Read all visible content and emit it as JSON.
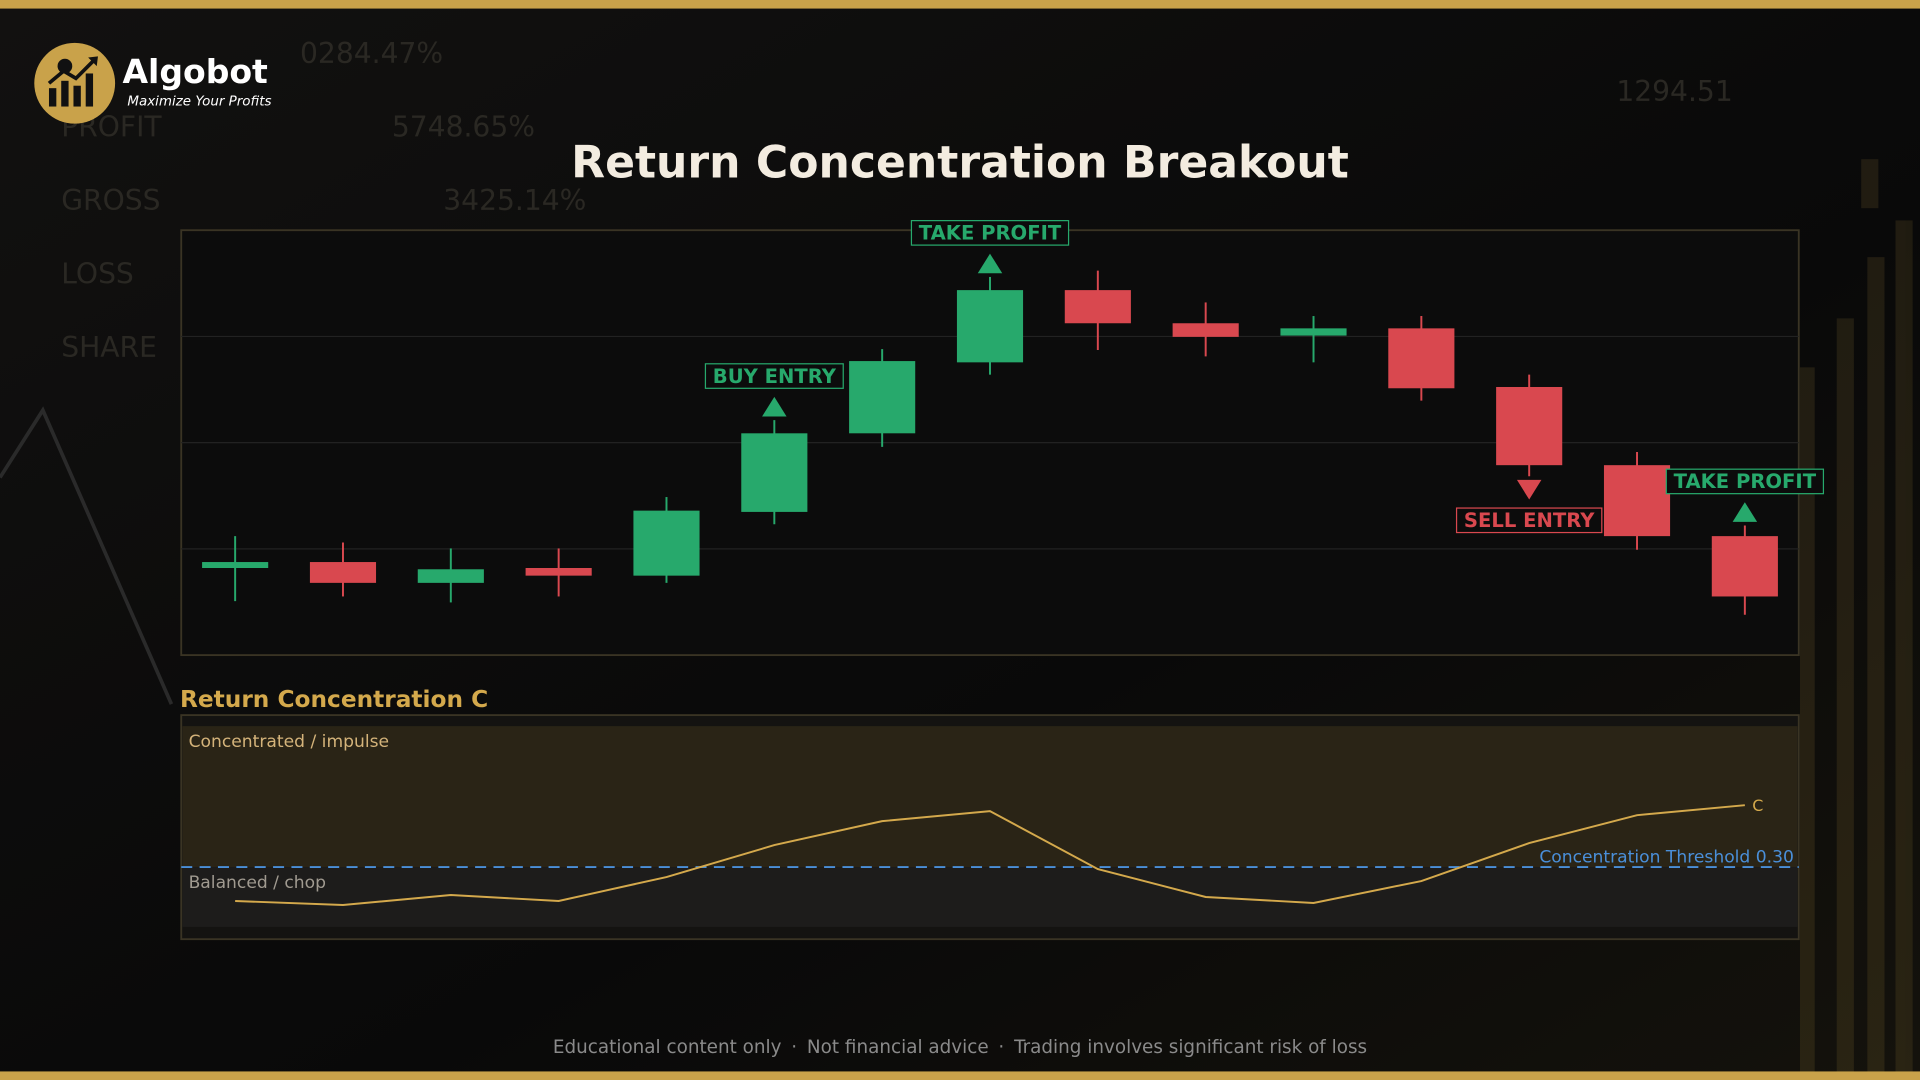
{
  "header": {
    "brand": "Algobot",
    "tagline": "Maximize Your Profits"
  },
  "background": {
    "texts": [
      "0284.47%",
      "PROFIT",
      "5748.65%",
      "GROSS",
      "3425.14%",
      "LOSS",
      "SHARE",
      "1294.51"
    ]
  },
  "chart_data": [
    {
      "type": "candlestick",
      "title": "Return Concentration Breakout",
      "open": [
        20.5,
        21.9,
        17.0,
        20.5,
        18.7,
        33.7,
        52.2,
        68.9,
        85.9,
        78.1,
        75.2,
        76.9,
        63.1,
        44.7,
        28.0
      ],
      "high": [
        28.0,
        26.5,
        25.1,
        25.1,
        37.2,
        55.3,
        72.0,
        89.0,
        90.5,
        83.0,
        79.8,
        79.8,
        66.0,
        47.8,
        30.5
      ],
      "low": [
        12.7,
        13.8,
        12.4,
        13.8,
        17.0,
        30.8,
        49.0,
        66.0,
        71.8,
        70.3,
        68.9,
        59.9,
        42.1,
        24.8,
        9.5
      ],
      "close": [
        21.9,
        17.0,
        20.2,
        18.7,
        34.0,
        52.2,
        69.2,
        85.9,
        78.1,
        74.9,
        76.9,
        62.8,
        44.7,
        28.0,
        13.8
      ],
      "ylim": [
        0,
        100
      ],
      "gridlines": [
        25,
        50,
        75
      ],
      "up_color": "#27a96c",
      "down_color": "#d9484f",
      "signals": [
        null,
        null,
        null,
        null,
        null,
        {
          "label": "BUY ENTRY",
          "direction": "up",
          "color": "#27a96c"
        },
        null,
        {
          "label": "TAKE PROFIT",
          "direction": "up",
          "color": "#27a96c"
        },
        null,
        null,
        null,
        null,
        {
          "label": "SELL ENTRY",
          "direction": "down",
          "color": "#d9484f"
        },
        null,
        {
          "label": "TAKE PROFIT",
          "direction": "up",
          "color": "#27a96c"
        }
      ]
    },
    {
      "type": "line",
      "title": "Return Concentration C",
      "series": [
        {
          "name": "C",
          "color": "#d4a94c",
          "values": [
            0.13,
            0.11,
            0.16,
            0.13,
            0.25,
            0.41,
            0.53,
            0.58,
            0.29,
            0.15,
            0.12,
            0.23,
            0.42,
            0.56,
            0.61
          ]
        }
      ],
      "ylim": [
        0,
        1
      ],
      "threshold": 0.3,
      "threshold_label": "Concentration Threshold 0.30",
      "threshold_color": "#4a8fd9",
      "zones": {
        "upper": "Concentrated / impulse",
        "lower": "Balanced / chop"
      }
    }
  ],
  "footer": {
    "items": [
      "Educational content only",
      "Not financial advice",
      "Trading involves significant risk of loss"
    ],
    "separator": "·"
  }
}
